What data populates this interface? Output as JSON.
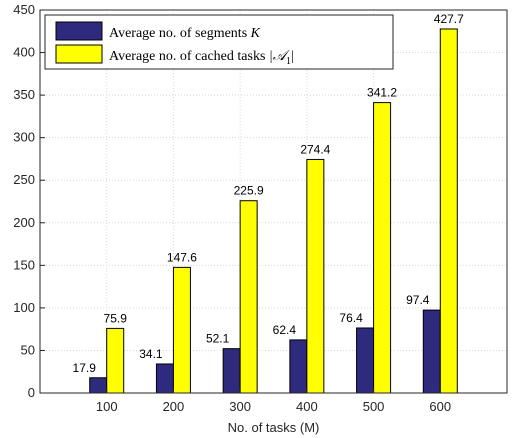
{
  "chart_data": {
    "type": "bar",
    "categories": [
      "100",
      "200",
      "300",
      "400",
      "500",
      "600"
    ],
    "series": [
      {
        "name": "Average no. of segments K",
        "legend_text": "Average no. of segments ",
        "legend_math": "K",
        "color": "#2e2a7e",
        "values": [
          17.9,
          34.1,
          52.1,
          62.4,
          76.4,
          97.4
        ],
        "labels": [
          "17.9",
          "34.1",
          "52.1",
          "62.4",
          "76.4",
          "97.4"
        ]
      },
      {
        "name": "Average no. of cached tasks |A1|",
        "legend_text": "Average no. of cached tasks ",
        "legend_math": "|𝒜",
        "legend_sub": "1",
        "legend_math_end": "|",
        "color": "#ffff00",
        "values": [
          75.9,
          147.6,
          225.9,
          274.4,
          341.2,
          427.7
        ],
        "labels": [
          "75.9",
          "147.6",
          "225.9",
          "274.4",
          "341.2",
          "427.7"
        ]
      }
    ],
    "title": "",
    "xlabel": "No. of tasks (M)",
    "ylabel": "",
    "ylim": [
      0,
      450
    ],
    "yticks": [
      "0",
      "50",
      "100",
      "150",
      "200",
      "250",
      "300",
      "350",
      "400",
      "450"
    ],
    "grid": true,
    "legend_position": "top-left"
  }
}
